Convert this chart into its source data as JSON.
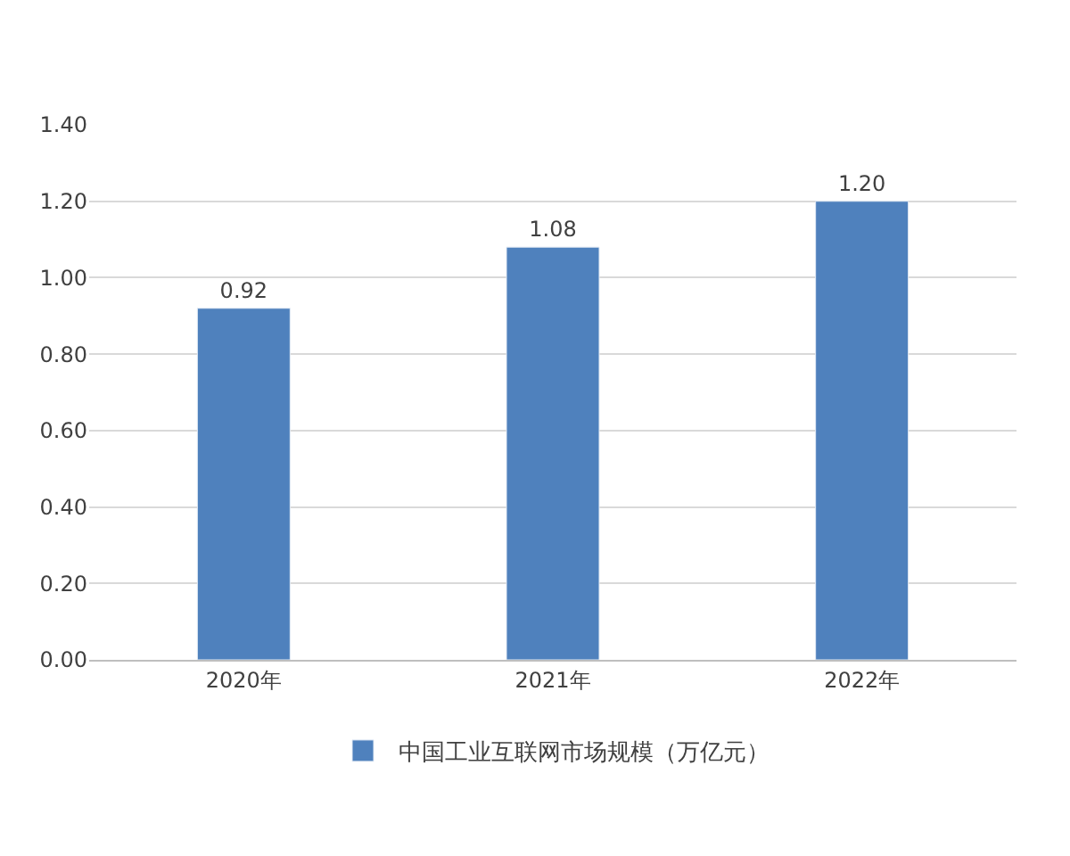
{
  "chart_data": {
    "type": "bar",
    "categories": [
      "2020年",
      "2021年",
      "2022年"
    ],
    "series": [
      {
        "name": "中国工业互联网市场规模（万亿元）",
        "color": "#4f81bd",
        "values": [
          0.92,
          1.08,
          1.2
        ]
      }
    ],
    "value_labels": [
      "0.92",
      "1.08",
      "1.20"
    ],
    "ylim": [
      0,
      1.4
    ],
    "yticks": [
      {
        "value": 0,
        "label": "0.00"
      },
      {
        "value": 0.2,
        "label": "0.20"
      },
      {
        "value": 0.4,
        "label": "0.40"
      },
      {
        "value": 0.6,
        "label": "0.60"
      },
      {
        "value": 0.8,
        "label": "0.80"
      },
      {
        "value": 1.0,
        "label": "1.00"
      },
      {
        "value": 1.2,
        "label": "1.20"
      },
      {
        "value": 1.4,
        "label": "1.40"
      }
    ],
    "grid": "y",
    "legend": "bottom"
  }
}
